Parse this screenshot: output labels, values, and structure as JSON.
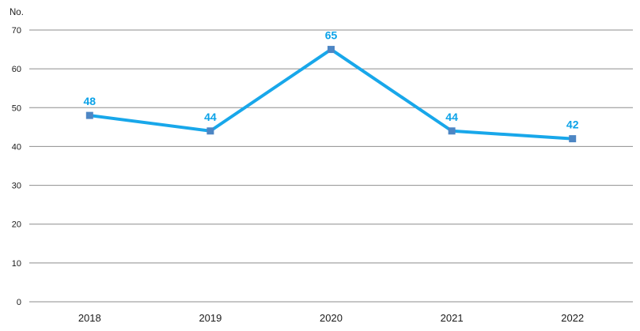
{
  "chart_data": {
    "type": "line",
    "title": "",
    "ylabel": "No.",
    "xlabel": "",
    "categories": [
      "2018",
      "2019",
      "2020",
      "2021",
      "2022"
    ],
    "series": [
      {
        "name": "No.",
        "values": [
          48,
          44,
          65,
          44,
          42
        ]
      }
    ],
    "data_labels": [
      "48",
      "44",
      "65",
      "44",
      "42"
    ],
    "ylim": [
      0,
      70
    ],
    "ytick_step": 10,
    "ytick_labels": [
      "0",
      "10",
      "20",
      "30",
      "40",
      "50",
      "60",
      "70"
    ],
    "grid": "horizontal",
    "legend_position": "none",
    "colors": {
      "line": "#18a7ea",
      "marker": "#4d86c4",
      "data_label": "#0ba2e8",
      "gridline": "#8e8e8e",
      "tick_text": "#1a1a1a"
    }
  }
}
